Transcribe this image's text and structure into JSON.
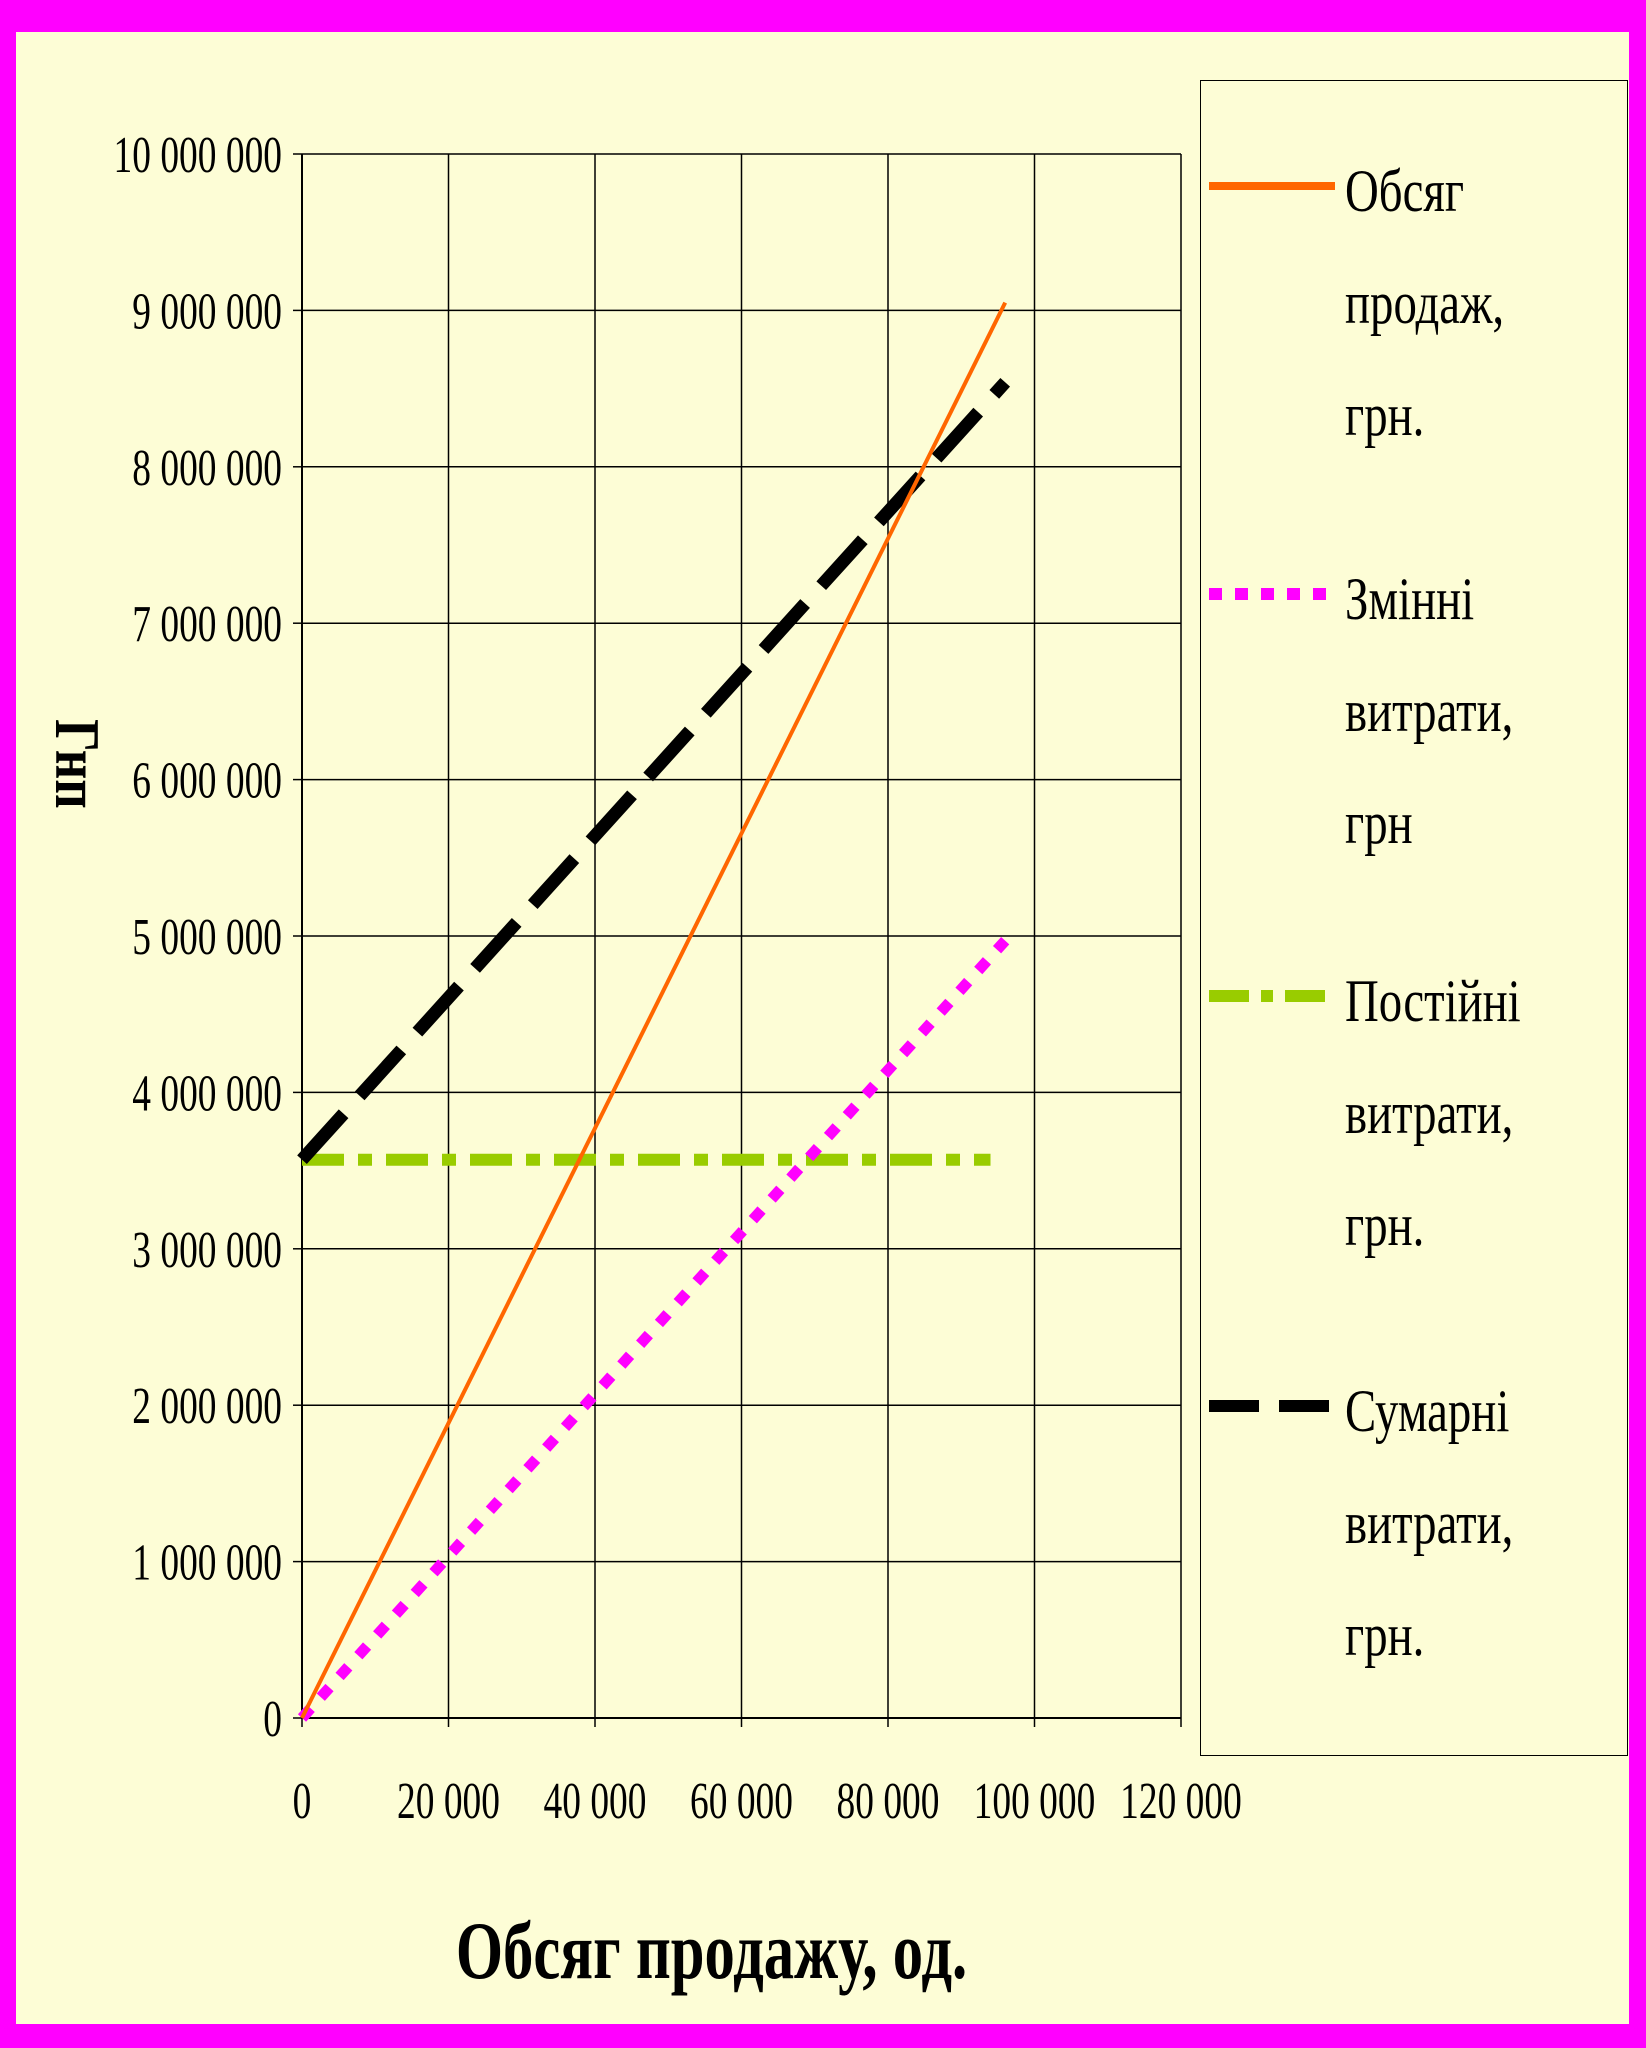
{
  "chart_data": {
    "type": "line",
    "xlabel": "Обсяг продажу, од.",
    "ylabel": "Гнп",
    "xlim": [
      0,
      120000
    ],
    "ylim": [
      0,
      10000000
    ],
    "x_ticks": [
      "0",
      "20 000",
      "40 000",
      "60 000",
      "80 000",
      "100 000",
      "120 000"
    ],
    "y_ticks": [
      "0",
      "1 000 000",
      "2 000 000",
      "3 000 000",
      "4 000 000",
      "5 000 000",
      "6 000 000",
      "7 000 000",
      "8 000 000",
      "9 000 000",
      "10 000 000"
    ],
    "grid": true,
    "legend_position": "right",
    "series": [
      {
        "name": "Обсяг продаж, грн.",
        "color": "#ff6600",
        "style": "solid",
        "x": [
          0,
          96000
        ],
        "y": [
          0,
          9050000
        ]
      },
      {
        "name": "Змінні витрати, грн",
        "color": "#ff00ff",
        "style": "dotted",
        "x": [
          0,
          96000
        ],
        "y": [
          0,
          4970000
        ]
      },
      {
        "name": "Постійні витрати, грн.",
        "color": "#99cc00",
        "style": "dashdot",
        "x": [
          0,
          94000
        ],
        "y": [
          3570000,
          3570000
        ]
      },
      {
        "name": "Сумарні витрати, грн.",
        "color": "#000000",
        "style": "dashed",
        "x": [
          0,
          96000
        ],
        "y": [
          3570000,
          8540000
        ]
      }
    ]
  }
}
